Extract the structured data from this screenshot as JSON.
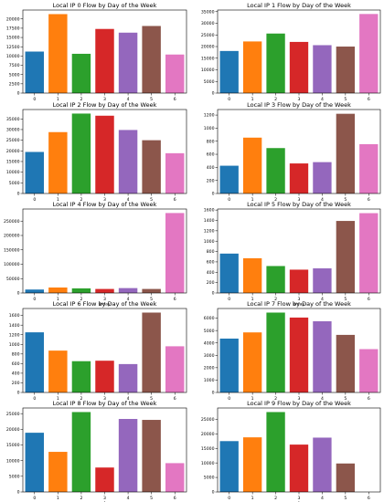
{
  "chart_data": [
    {
      "type": "bar",
      "title": "Local IP 0 Flow by Day of the Week",
      "xlabel": "",
      "categories": [
        "0",
        "1",
        "2",
        "3",
        "4",
        "5",
        "6"
      ],
      "values": [
        11200,
        21300,
        10600,
        17300,
        16300,
        18100,
        10400
      ],
      "ylim": [
        0,
        22400
      ],
      "yticks": [
        0,
        2500,
        5000,
        7500,
        10000,
        12500,
        15000,
        17500,
        20000
      ]
    },
    {
      "type": "bar",
      "title": "Local IP 1 Flow by Day of the Week",
      "xlabel": "",
      "categories": [
        "0",
        "1",
        "2",
        "3",
        "4",
        "5",
        "6"
      ],
      "values": [
        18100,
        22200,
        25600,
        22000,
        20600,
        20000,
        34000
      ],
      "ylim": [
        0,
        35700
      ],
      "yticks": [
        0,
        5000,
        10000,
        15000,
        20000,
        25000,
        30000,
        35000
      ]
    },
    {
      "type": "bar",
      "title": "Local IP 2 Flow by Day of the Week",
      "xlabel": "",
      "categories": [
        "0",
        "1",
        "2",
        "3",
        "4",
        "5",
        "6"
      ],
      "values": [
        19500,
        28800,
        37500,
        36500,
        29800,
        25000,
        18900
      ],
      "ylim": [
        0,
        39400
      ],
      "yticks": [
        0,
        5000,
        10000,
        15000,
        20000,
        25000,
        30000,
        35000
      ]
    },
    {
      "type": "bar",
      "title": "Local IP 3 Flow by Day of the Week",
      "xlabel": "",
      "categories": [
        "0",
        "1",
        "2",
        "3",
        "4",
        "5",
        "6"
      ],
      "values": [
        425,
        855,
        695,
        460,
        480,
        1220,
        755
      ],
      "ylim": [
        0,
        1285
      ],
      "yticks": [
        0,
        200,
        400,
        600,
        800,
        1000,
        1200
      ]
    },
    {
      "type": "bar",
      "title": "Local IP 4 Flow by Day of the Week",
      "xlabel": "wday",
      "categories": [
        "0",
        "1",
        "2",
        "3",
        "4",
        "5",
        "6"
      ],
      "values": [
        12000,
        19000,
        16000,
        14000,
        17000,
        14000,
        278000
      ],
      "ylim": [
        0,
        292000
      ],
      "yticks": [
        0,
        50000,
        100000,
        150000,
        200000,
        250000
      ]
    },
    {
      "type": "bar",
      "title": "Local IP 5 Flow by Day of the Week",
      "xlabel": "wday",
      "categories": [
        "0",
        "1",
        "2",
        "3",
        "4",
        "5",
        "6"
      ],
      "values": [
        760,
        670,
        520,
        450,
        475,
        1390,
        1540
      ],
      "ylim": [
        0,
        1620
      ],
      "yticks": [
        0,
        200,
        400,
        600,
        800,
        1000,
        1200,
        1400,
        1600
      ]
    },
    {
      "type": "bar",
      "title": "Local IP 6 Flow by Day of the Week",
      "xlabel": "",
      "categories": [
        "0",
        "1",
        "2",
        "3",
        "4",
        "5",
        "6"
      ],
      "values": [
        1250,
        870,
        650,
        660,
        590,
        1660,
        960
      ],
      "ylim": [
        0,
        1745
      ],
      "yticks": [
        0,
        200,
        400,
        600,
        800,
        1000,
        1200,
        1400,
        1600
      ]
    },
    {
      "type": "bar",
      "title": "Local IP 7 Flow by Day of the Week",
      "xlabel": "",
      "categories": [
        "0",
        "1",
        "2",
        "3",
        "4",
        "5",
        "6"
      ],
      "values": [
        4350,
        4850,
        6450,
        6050,
        5750,
        4650,
        3500
      ],
      "ylim": [
        0,
        6780
      ],
      "yticks": [
        0,
        1000,
        2000,
        3000,
        4000,
        5000,
        6000
      ]
    },
    {
      "type": "bar",
      "title": "Local IP 8 Flow by Day of the Week",
      "xlabel": "wday",
      "categories": [
        "0",
        "1",
        "2",
        "3",
        "4",
        "5",
        "6"
      ],
      "values": [
        18900,
        12800,
        25500,
        7800,
        23300,
        23000,
        9200
      ],
      "ylim": [
        0,
        26800
      ],
      "yticks": [
        0,
        5000,
        10000,
        15000,
        20000,
        25000
      ]
    },
    {
      "type": "bar",
      "title": "Local IP 9 Flow by Day of the Week",
      "xlabel": "wday",
      "categories": [
        "0",
        "1",
        "2",
        "3",
        "4",
        "5",
        "6"
      ],
      "values": [
        17500,
        18800,
        27500,
        16300,
        18700,
        9800,
        0
      ],
      "ylim": [
        0,
        28900
      ],
      "yticks": [
        0,
        5000,
        10000,
        15000,
        20000,
        25000
      ]
    }
  ],
  "colors": [
    "#1f77b4",
    "#ff7f0e",
    "#2ca02c",
    "#d62728",
    "#9467bd",
    "#8c564b",
    "#e377c2"
  ]
}
